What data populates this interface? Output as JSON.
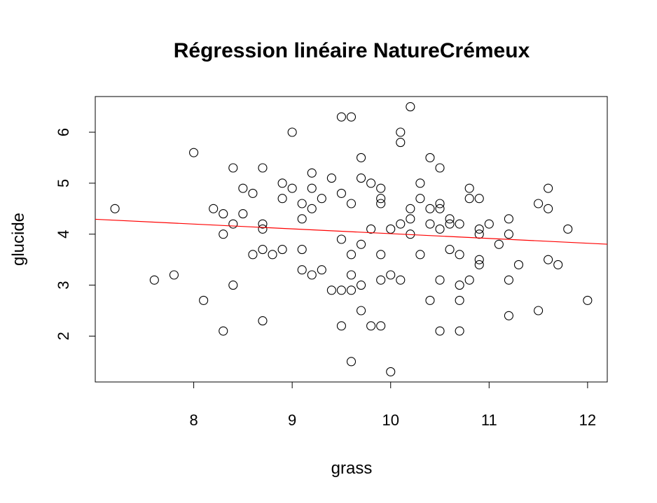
{
  "chart_data": {
    "type": "scatter",
    "title": "Régression linéaire NatureCrémeux",
    "xlabel": "grass",
    "ylabel": "glucide",
    "xlim": [
      7.0,
      12.2
    ],
    "ylim": [
      1.1,
      6.7
    ],
    "x_ticks": [
      8,
      9,
      10,
      11,
      12
    ],
    "y_ticks": [
      2,
      3,
      4,
      5,
      6
    ],
    "grid": false,
    "legend": "none",
    "point_style": "open-circle",
    "points": [
      [
        7.2,
        4.5
      ],
      [
        7.6,
        3.1
      ],
      [
        7.8,
        3.2
      ],
      [
        8.0,
        5.6
      ],
      [
        8.1,
        2.7
      ],
      [
        8.2,
        4.5
      ],
      [
        8.3,
        4.4
      ],
      [
        8.3,
        4.0
      ],
      [
        8.3,
        2.1
      ],
      [
        8.4,
        5.3
      ],
      [
        8.4,
        4.2
      ],
      [
        8.4,
        3.0
      ],
      [
        8.5,
        4.9
      ],
      [
        8.5,
        4.4
      ],
      [
        8.6,
        4.8
      ],
      [
        8.6,
        3.6
      ],
      [
        8.7,
        5.3
      ],
      [
        8.7,
        4.2
      ],
      [
        8.7,
        4.1
      ],
      [
        8.7,
        3.7
      ],
      [
        8.7,
        2.3
      ],
      [
        8.8,
        3.6
      ],
      [
        8.9,
        5.0
      ],
      [
        8.9,
        4.7
      ],
      [
        8.9,
        3.7
      ],
      [
        9.0,
        6.0
      ],
      [
        9.0,
        4.9
      ],
      [
        9.1,
        4.6
      ],
      [
        9.1,
        4.3
      ],
      [
        9.1,
        3.7
      ],
      [
        9.1,
        3.3
      ],
      [
        9.2,
        5.2
      ],
      [
        9.2,
        4.9
      ],
      [
        9.2,
        4.5
      ],
      [
        9.2,
        3.2
      ],
      [
        9.3,
        4.7
      ],
      [
        9.3,
        3.3
      ],
      [
        9.4,
        5.1
      ],
      [
        9.4,
        2.9
      ],
      [
        9.5,
        6.3
      ],
      [
        9.5,
        4.8
      ],
      [
        9.5,
        3.9
      ],
      [
        9.5,
        2.9
      ],
      [
        9.5,
        2.2
      ],
      [
        9.6,
        6.3
      ],
      [
        9.6,
        4.6
      ],
      [
        9.6,
        3.6
      ],
      [
        9.6,
        3.2
      ],
      [
        9.6,
        2.9
      ],
      [
        9.6,
        1.5
      ],
      [
        9.7,
        5.5
      ],
      [
        9.7,
        5.1
      ],
      [
        9.7,
        3.8
      ],
      [
        9.7,
        3.0
      ],
      [
        9.7,
        2.5
      ],
      [
        9.8,
        5.0
      ],
      [
        9.8,
        4.1
      ],
      [
        9.8,
        2.2
      ],
      [
        9.9,
        4.9
      ],
      [
        9.9,
        4.7
      ],
      [
        9.9,
        4.6
      ],
      [
        9.9,
        3.6
      ],
      [
        9.9,
        3.1
      ],
      [
        9.9,
        2.2
      ],
      [
        10.0,
        4.1
      ],
      [
        10.0,
        3.2
      ],
      [
        10.0,
        1.3
      ],
      [
        10.1,
        6.0
      ],
      [
        10.1,
        5.8
      ],
      [
        10.1,
        4.2
      ],
      [
        10.1,
        3.1
      ],
      [
        10.2,
        6.5
      ],
      [
        10.2,
        4.5
      ],
      [
        10.2,
        4.3
      ],
      [
        10.2,
        4.0
      ],
      [
        10.3,
        5.0
      ],
      [
        10.3,
        4.7
      ],
      [
        10.3,
        3.6
      ],
      [
        10.4,
        5.5
      ],
      [
        10.4,
        4.5
      ],
      [
        10.4,
        4.2
      ],
      [
        10.4,
        2.7
      ],
      [
        10.5,
        5.3
      ],
      [
        10.5,
        4.6
      ],
      [
        10.5,
        4.5
      ],
      [
        10.5,
        4.1
      ],
      [
        10.5,
        3.1
      ],
      [
        10.5,
        2.1
      ],
      [
        10.6,
        4.3
      ],
      [
        10.6,
        4.2
      ],
      [
        10.6,
        3.7
      ],
      [
        10.7,
        4.2
      ],
      [
        10.7,
        3.6
      ],
      [
        10.7,
        3.0
      ],
      [
        10.7,
        2.7
      ],
      [
        10.7,
        2.1
      ],
      [
        10.8,
        4.9
      ],
      [
        10.8,
        4.7
      ],
      [
        10.8,
        3.1
      ],
      [
        10.9,
        4.7
      ],
      [
        10.9,
        4.1
      ],
      [
        10.9,
        4.0
      ],
      [
        10.9,
        3.5
      ],
      [
        10.9,
        3.4
      ],
      [
        11.0,
        4.2
      ],
      [
        11.1,
        3.8
      ],
      [
        11.2,
        4.3
      ],
      [
        11.2,
        4.0
      ],
      [
        11.2,
        3.1
      ],
      [
        11.2,
        2.4
      ],
      [
        11.3,
        3.4
      ],
      [
        11.5,
        4.6
      ],
      [
        11.5,
        2.5
      ],
      [
        11.6,
        4.9
      ],
      [
        11.6,
        4.5
      ],
      [
        11.6,
        3.5
      ],
      [
        11.7,
        3.4
      ],
      [
        11.8,
        4.1
      ],
      [
        12.0,
        2.7
      ]
    ],
    "regression_line": {
      "intercept": 4.95,
      "slope": -0.094,
      "color": "#ff0000"
    }
  }
}
